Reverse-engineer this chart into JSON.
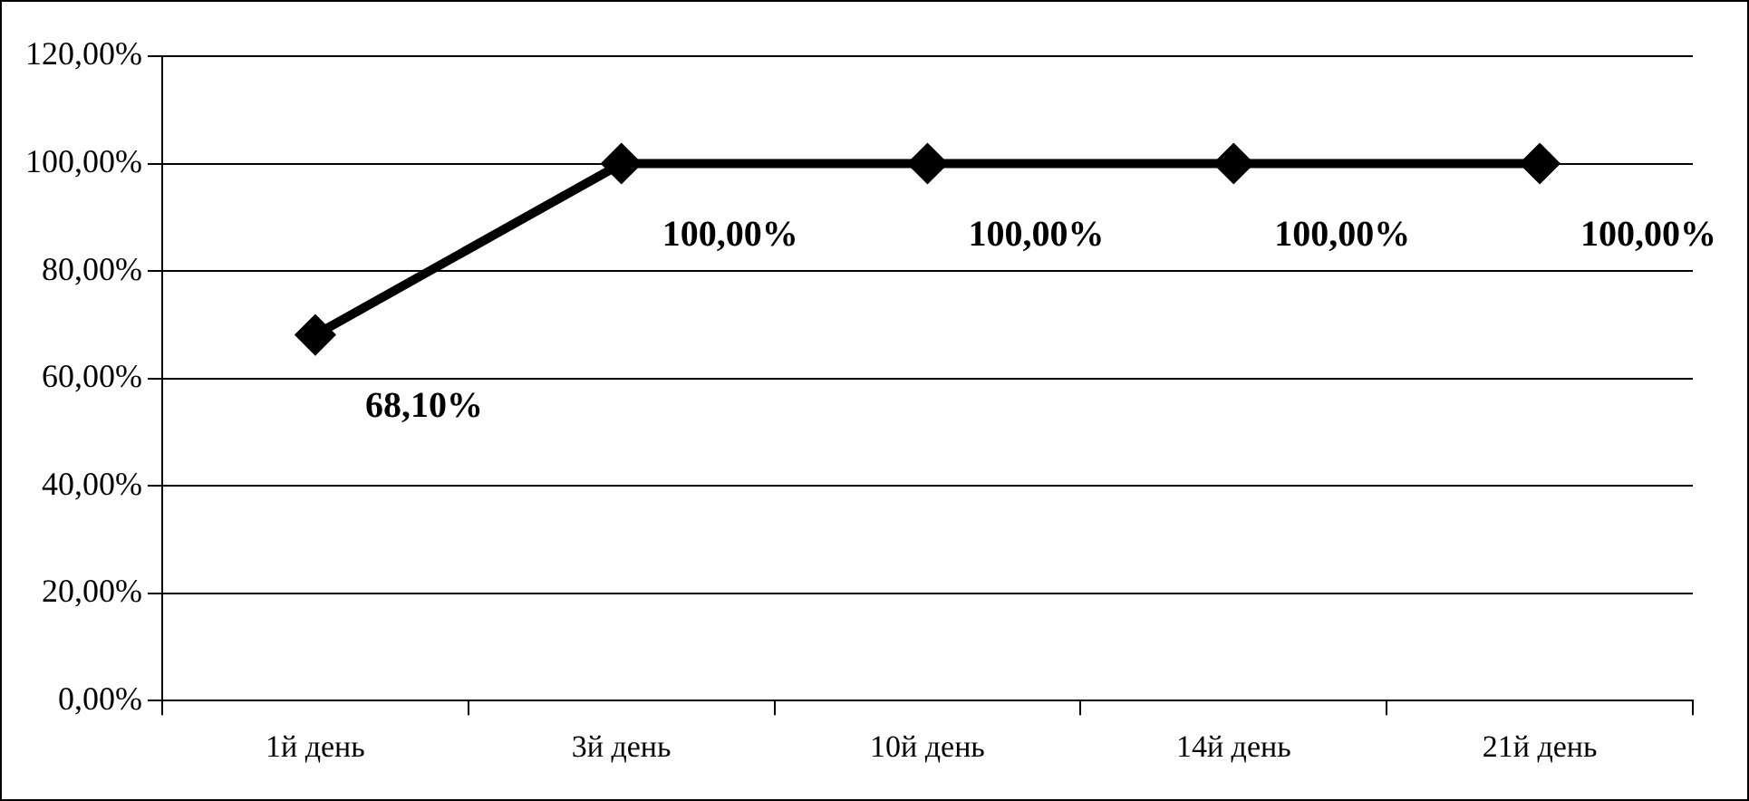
{
  "chart_data": {
    "type": "line",
    "categories": [
      "1й день",
      "3й день",
      "10й день",
      "14й день",
      "21й день"
    ],
    "values": [
      68.1,
      100,
      100,
      100,
      100
    ],
    "value_labels": [
      "68,10%",
      "100,00%",
      "100,00%",
      "100,00%",
      "100,00%"
    ],
    "color": "#000000",
    "marker": "diamond",
    "line_style": "solid",
    "grid": "y",
    "ylim": [
      0,
      120
    ],
    "yticks": [
      {
        "value": 0,
        "label": "0,00%"
      },
      {
        "value": 20,
        "label": "20,00%"
      },
      {
        "value": 40,
        "label": "40,00%"
      },
      {
        "value": 60,
        "label": "60,00%"
      },
      {
        "value": 80,
        "label": "80,00%"
      },
      {
        "value": 100,
        "label": "100,00%"
      },
      {
        "value": 120,
        "label": "120,00%"
      }
    ]
  }
}
